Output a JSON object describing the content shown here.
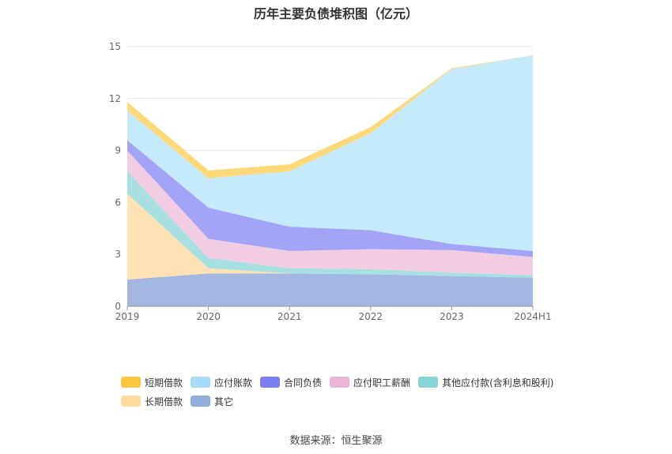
{
  "chart_data": {
    "type": "area",
    "stacked": true,
    "title": "历年主要负债堆积图（亿元）",
    "categories": [
      "2019",
      "2020",
      "2021",
      "2022",
      "2023",
      "2024H1"
    ],
    "ylim": [
      0,
      15
    ],
    "yticks": [
      "0",
      "3",
      "6",
      "9",
      "12",
      "15"
    ],
    "grid": true,
    "legend_position": "bottom",
    "series": [
      {
        "name": "其它",
        "color": "#a3b7e0",
        "values": [
          1.55,
          1.9,
          1.9,
          1.85,
          1.75,
          1.65
        ]
      },
      {
        "name": "长期借款",
        "color": "#ffe2b3",
        "values": [
          4.95,
          0.3,
          0.0,
          0.0,
          0.0,
          0.0
        ]
      },
      {
        "name": "其他应付款(含利息和股利)",
        "color": "#a8e0e2",
        "values": [
          1.3,
          0.6,
          0.3,
          0.3,
          0.2,
          0.15
        ]
      },
      {
        "name": "应付职工薪酬",
        "color": "#f2cce3",
        "values": [
          1.2,
          1.1,
          1.0,
          1.15,
          1.3,
          1.05
        ]
      },
      {
        "name": "合同负债",
        "color": "#a3a4f7",
        "values": [
          0.6,
          1.8,
          1.4,
          1.1,
          0.35,
          0.35
        ]
      },
      {
        "name": "应付账款",
        "color": "#c5eafc",
        "values": [
          1.7,
          1.7,
          3.2,
          5.6,
          10.1,
          11.3
        ]
      },
      {
        "name": "短期借款",
        "color": "#ffd87a",
        "values": [
          0.5,
          0.45,
          0.4,
          0.35,
          0.05,
          0.0
        ]
      }
    ],
    "legend": [
      [
        {
          "name": "短期借款",
          "color": "#fdc73d"
        },
        {
          "name": "应付账款",
          "color": "#a6dcf8"
        },
        {
          "name": "合同负债",
          "color": "#7b7ef0"
        },
        {
          "name": "应付职工薪酬",
          "color": "#e9b5d9"
        },
        {
          "name": "其他应付款(含利息和股利)",
          "color": "#87d4d6"
        }
      ],
      [
        {
          "name": "长期借款",
          "color": "#ffdb9e"
        },
        {
          "name": "其它",
          "color": "#8faedb"
        }
      ]
    ]
  },
  "source_text": "数据来源：恒生聚源"
}
